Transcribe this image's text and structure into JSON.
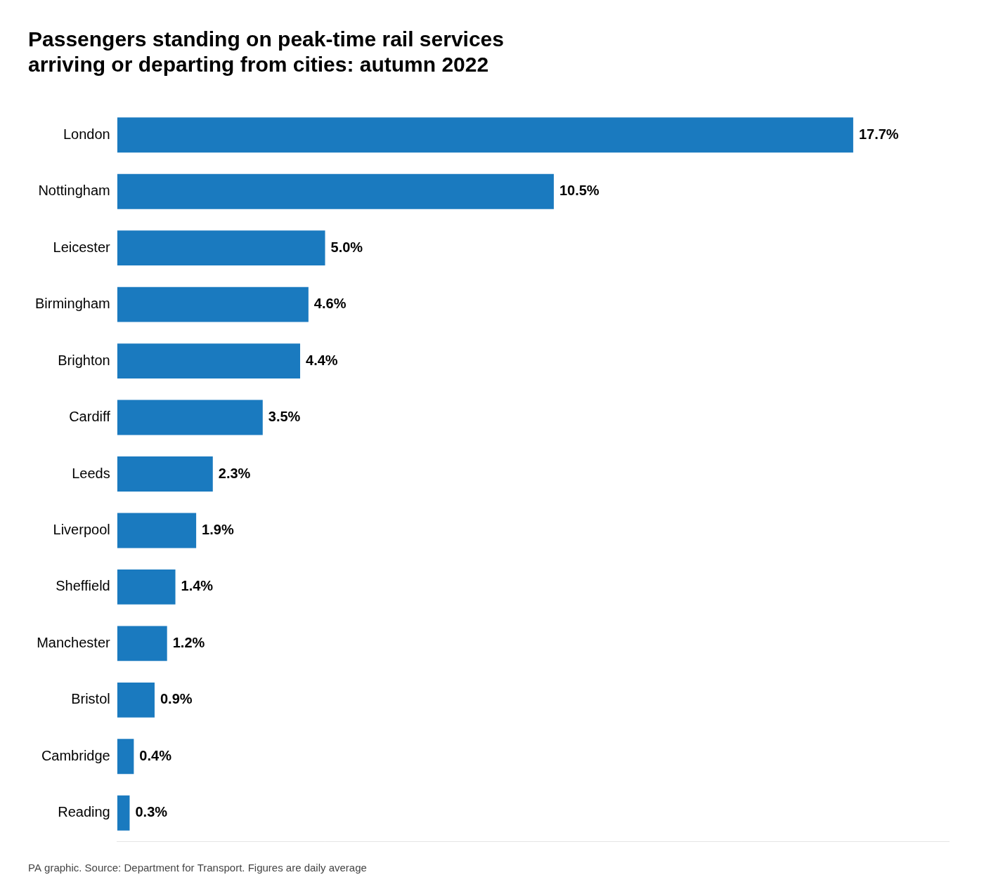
{
  "chart_data": {
    "type": "bar",
    "orientation": "horizontal",
    "title": "Passengers standing on peak-time rail services\narriving or departing from cities: autumn 2022",
    "footnote": "PA graphic. Source: Department for Transport. Figures are daily average",
    "categories": [
      "London",
      "Nottingham",
      "Leicester",
      "Birmingham",
      "Brighton",
      "Cardiff",
      "Leeds",
      "Liverpool",
      "Sheffield",
      "Manchester",
      "Bristol",
      "Cambridge",
      "Reading"
    ],
    "values": [
      17.7,
      10.5,
      5.0,
      4.6,
      4.4,
      3.5,
      2.3,
      1.9,
      1.4,
      1.2,
      0.9,
      0.4,
      0.3
    ],
    "value_labels": [
      "17.7%",
      "10.5%",
      "5.0%",
      "4.6%",
      "4.4%",
      "3.5%",
      "2.3%",
      "1.9%",
      "1.4%",
      "1.2%",
      "0.9%",
      "0.4%",
      "0.3%"
    ],
    "data_labels": true,
    "color": "#1a7abf",
    "xlim": [
      0,
      20
    ],
    "grid": false,
    "tick_labels": "y"
  }
}
